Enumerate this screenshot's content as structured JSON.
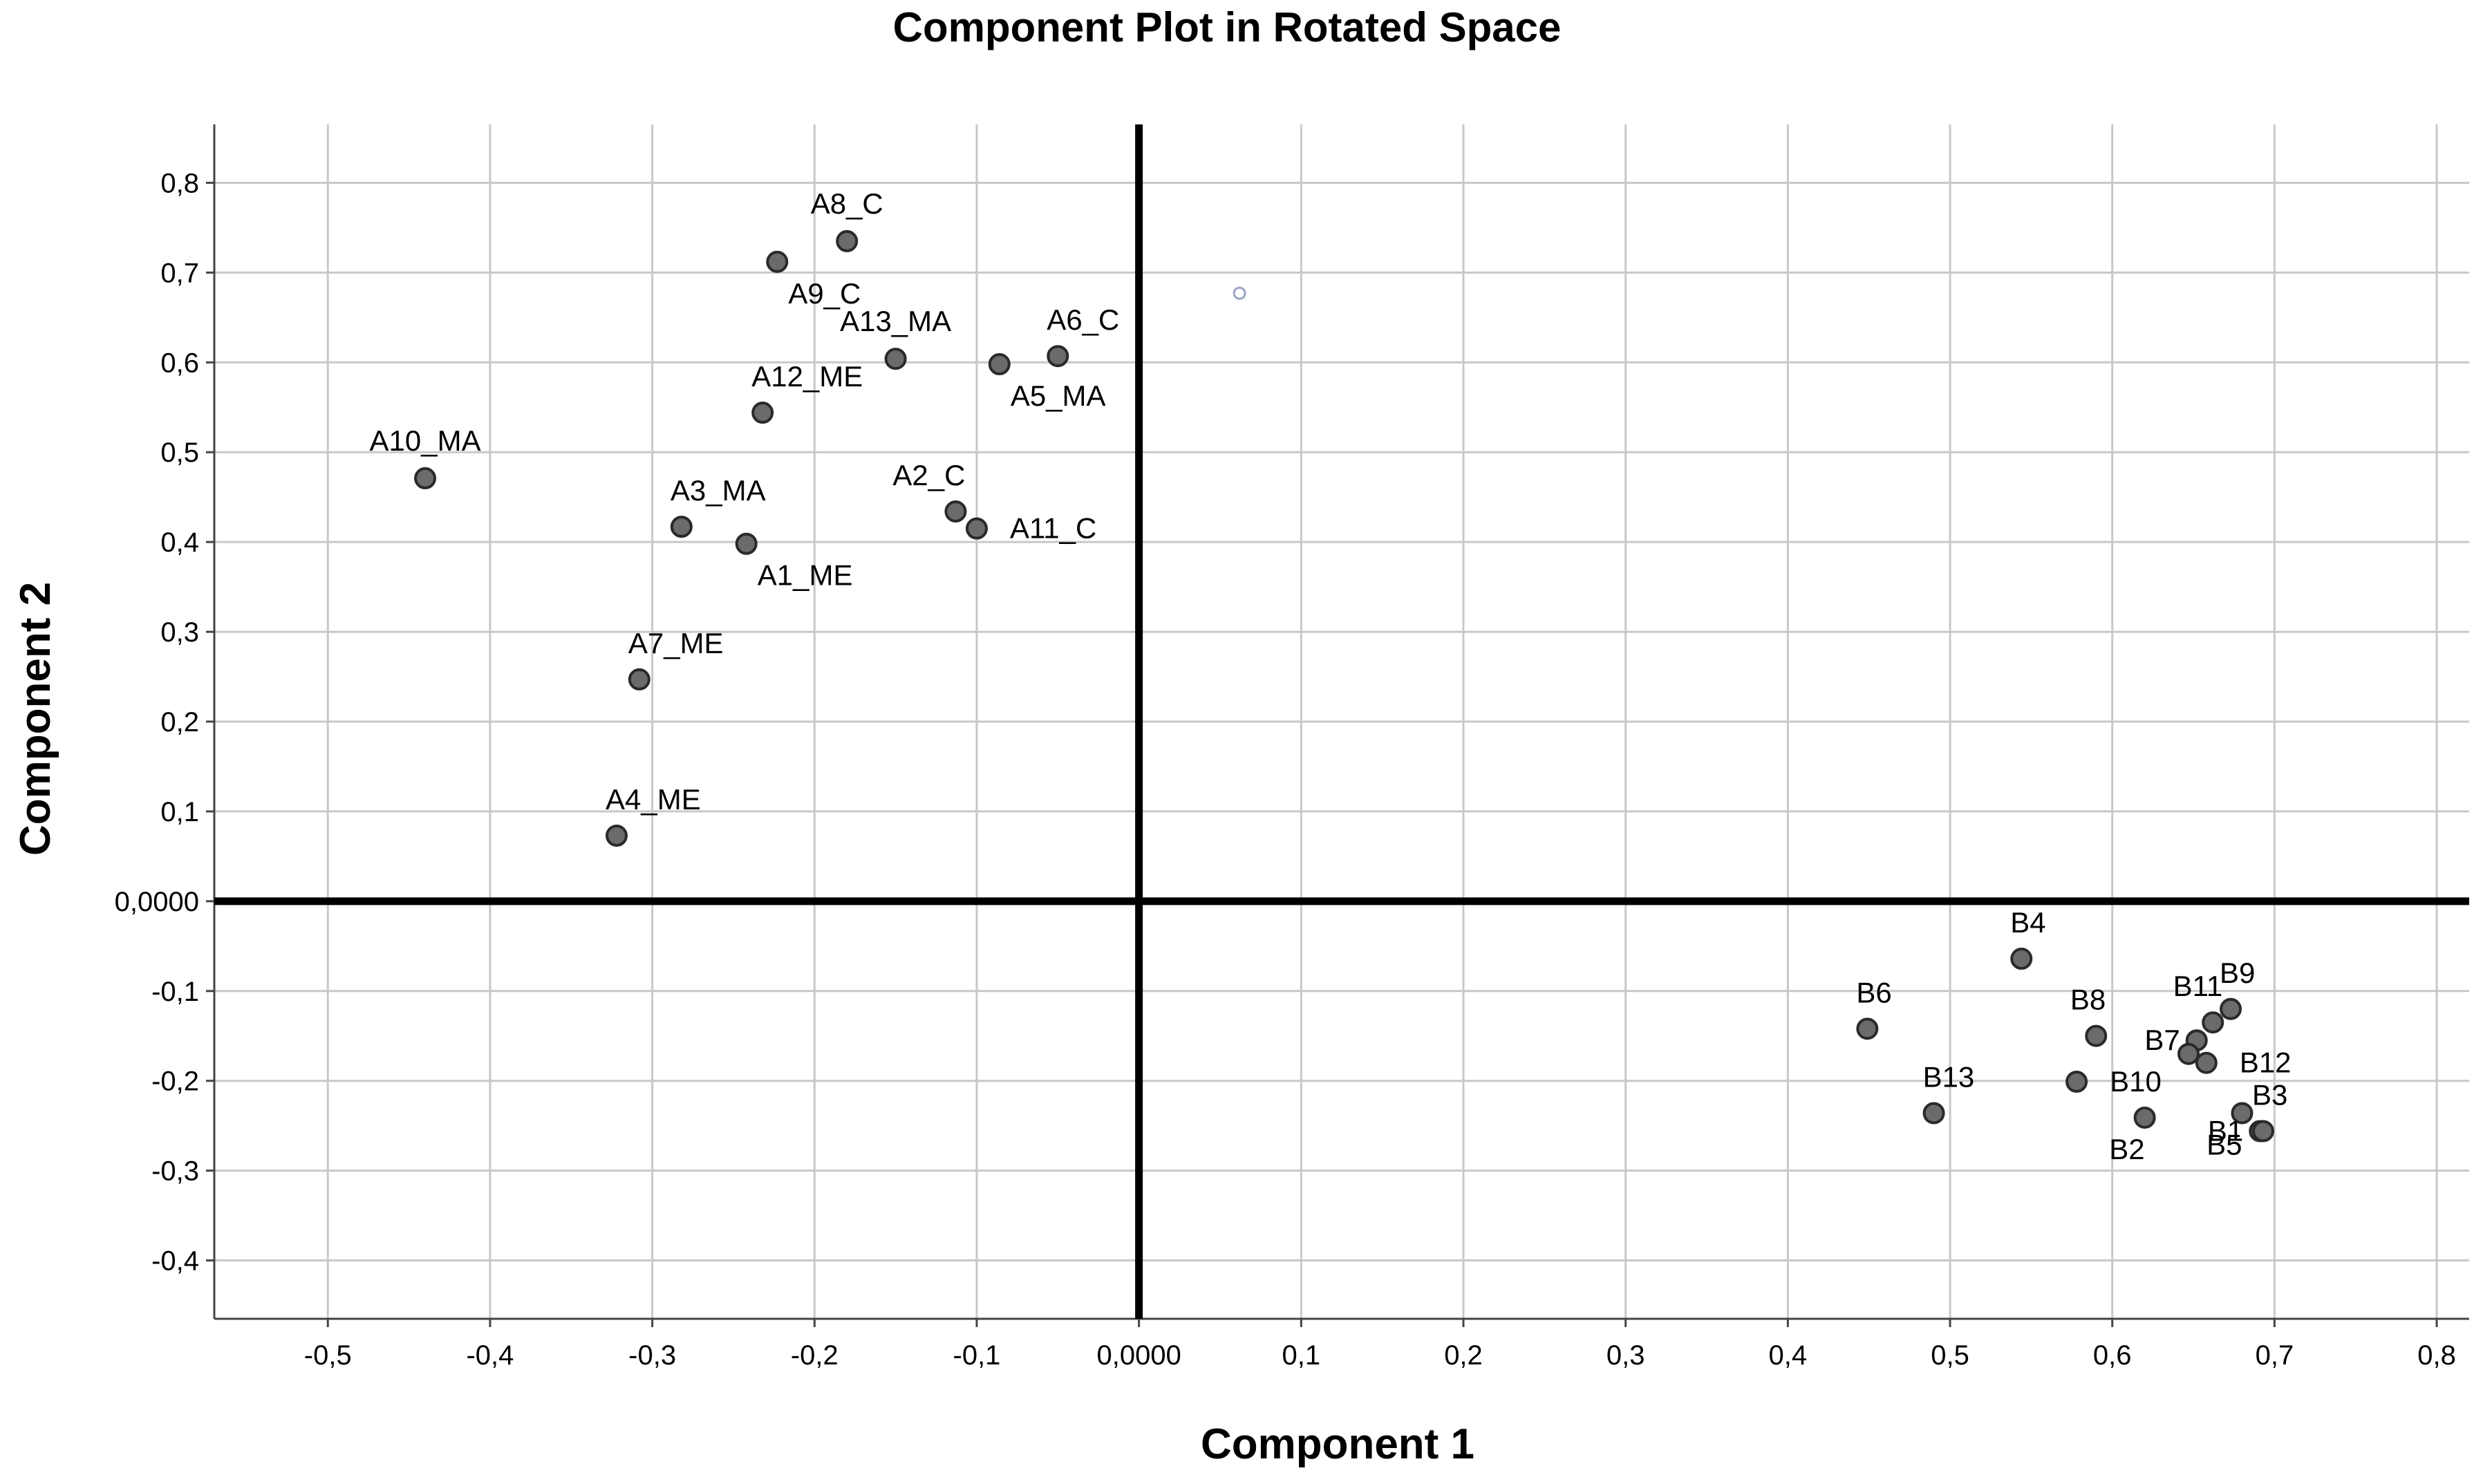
{
  "chart_data": {
    "type": "scatter",
    "title": "Component Plot in Rotated Space",
    "xlabel": "Component 1",
    "ylabel": "Component 2",
    "xlim": [
      -0.57,
      0.82
    ],
    "ylim": [
      -0.465,
      0.865
    ],
    "grid": true,
    "x_ticks": [
      {
        "value": -0.5,
        "label": "-0,5"
      },
      {
        "value": -0.4,
        "label": "-0,4"
      },
      {
        "value": -0.3,
        "label": "-0,3"
      },
      {
        "value": -0.2,
        "label": "-0,2"
      },
      {
        "value": -0.1,
        "label": "-0,1"
      },
      {
        "value": 0.0,
        "label": "0,0000"
      },
      {
        "value": 0.1,
        "label": "0,1"
      },
      {
        "value": 0.2,
        "label": "0,2"
      },
      {
        "value": 0.3,
        "label": "0,3"
      },
      {
        "value": 0.4,
        "label": "0,4"
      },
      {
        "value": 0.5,
        "label": "0,5"
      },
      {
        "value": 0.6,
        "label": "0,6"
      },
      {
        "value": 0.7,
        "label": "0,7"
      },
      {
        "value": 0.8,
        "label": "0,8"
      }
    ],
    "y_ticks": [
      {
        "value": 0.8,
        "label": "0,8"
      },
      {
        "value": 0.7,
        "label": "0,7"
      },
      {
        "value": 0.6,
        "label": "0,6"
      },
      {
        "value": 0.5,
        "label": "0,5"
      },
      {
        "value": 0.4,
        "label": "0,4"
      },
      {
        "value": 0.3,
        "label": "0,3"
      },
      {
        "value": 0.2,
        "label": "0,2"
      },
      {
        "value": 0.1,
        "label": "0,1"
      },
      {
        "value": 0.0,
        "label": "0,0000"
      },
      {
        "value": -0.1,
        "label": "-0,1"
      },
      {
        "value": -0.2,
        "label": "-0,2"
      },
      {
        "value": -0.3,
        "label": "-0,3"
      },
      {
        "value": -0.4,
        "label": "-0,4"
      }
    ],
    "point_color": "#6b6b6b",
    "hollow_point_color": "#9aa3c4",
    "points": [
      {
        "label": "A8_C",
        "x": -0.18,
        "y": 0.735,
        "label_pos": "above"
      },
      {
        "label": "A9_C",
        "x": -0.223,
        "y": 0.712,
        "label_pos": "below"
      },
      {
        "label": "A13_MA",
        "x": -0.15,
        "y": 0.604,
        "label_pos": "above"
      },
      {
        "label": "A6_C",
        "x": -0.05,
        "y": 0.607,
        "label_pos": "above-right"
      },
      {
        "label": "A5_MA",
        "x": -0.086,
        "y": 0.598,
        "label_pos": "below-right"
      },
      {
        "label": "A12_ME",
        "x": -0.232,
        "y": 0.544,
        "label_pos": "above-right"
      },
      {
        "label": "A10_MA",
        "x": -0.44,
        "y": 0.471,
        "label_pos": "above"
      },
      {
        "label": "A3_MA",
        "x": -0.282,
        "y": 0.417,
        "label_pos": "above-right"
      },
      {
        "label": "A2_C",
        "x": -0.113,
        "y": 0.434,
        "label_pos": "above-left"
      },
      {
        "label": "A11_C",
        "x": -0.1,
        "y": 0.415,
        "label_pos": "right"
      },
      {
        "label": "A1_ME",
        "x": -0.242,
        "y": 0.398,
        "label_pos": "below-right"
      },
      {
        "label": "A7_ME",
        "x": -0.308,
        "y": 0.247,
        "label_pos": "above-right"
      },
      {
        "label": "A4_ME",
        "x": -0.322,
        "y": 0.073,
        "label_pos": "above-right"
      },
      {
        "label": "B4",
        "x": 0.544,
        "y": -0.064,
        "label_pos": "above-right"
      },
      {
        "label": "B6",
        "x": 0.449,
        "y": -0.142,
        "label_pos": "above-right"
      },
      {
        "label": "B9",
        "x": 0.673,
        "y": -0.12,
        "label_pos": "above-right"
      },
      {
        "label": "B11",
        "x": 0.662,
        "y": -0.135,
        "label_pos": "above-left"
      },
      {
        "label": "B8",
        "x": 0.59,
        "y": -0.15,
        "label_pos": "above-left"
      },
      {
        "label": "B7",
        "x": 0.652,
        "y": -0.155,
        "label_pos": "left"
      },
      {
        "label": "B12",
        "x": 0.658,
        "y": -0.18,
        "label_pos": "right"
      },
      {
        "label": "",
        "x": 0.647,
        "y": -0.17,
        "label_pos": "none"
      },
      {
        "label": "B10",
        "x": 0.578,
        "y": -0.201,
        "label_pos": "right"
      },
      {
        "label": "B13",
        "x": 0.49,
        "y": -0.236,
        "label_pos": "above-right"
      },
      {
        "label": "B2",
        "x": 0.62,
        "y": -0.241,
        "label_pos": "below-left"
      },
      {
        "label": "B5",
        "x": 0.68,
        "y": -0.236,
        "label_pos": "below-left"
      },
      {
        "label": "B1",
        "x": 0.691,
        "y": -0.256,
        "label_pos": "left"
      },
      {
        "label": "B3",
        "x": 0.693,
        "y": -0.256,
        "label_pos": "above-right"
      }
    ],
    "hollow_points": [
      {
        "x": 0.062,
        "y": 0.677
      }
    ]
  }
}
